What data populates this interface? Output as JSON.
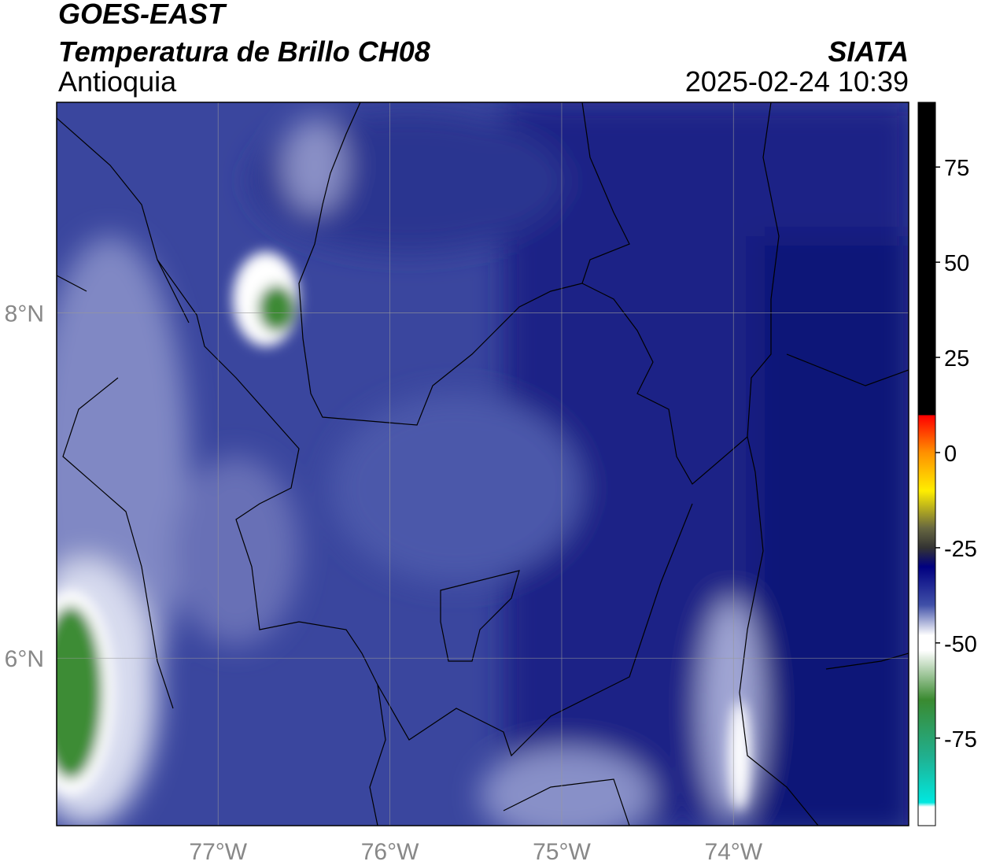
{
  "header": {
    "title": "GOES-EAST",
    "subtitle": "Temperatura de Brillo CH08",
    "region": "Antioquia",
    "source": "SIATA",
    "datetime": "2025-02-24 10:39"
  },
  "map": {
    "lon_range": [
      -77.94,
      -72.98
    ],
    "lat_range": [
      5.03,
      9.22
    ],
    "lon_ticks": [
      {
        "value": -77,
        "label": "77°W"
      },
      {
        "value": -76,
        "label": "76°W"
      },
      {
        "value": -75,
        "label": "75°W"
      },
      {
        "value": -74,
        "label": "74°W"
      }
    ],
    "lat_ticks": [
      {
        "value": 8,
        "label": "8°N"
      },
      {
        "value": 6,
        "label": "6°N"
      }
    ]
  },
  "colorbar": {
    "range": [
      -98,
      92
    ],
    "ticks": [
      75,
      50,
      25,
      0,
      -25,
      -50,
      -75
    ]
  }
}
